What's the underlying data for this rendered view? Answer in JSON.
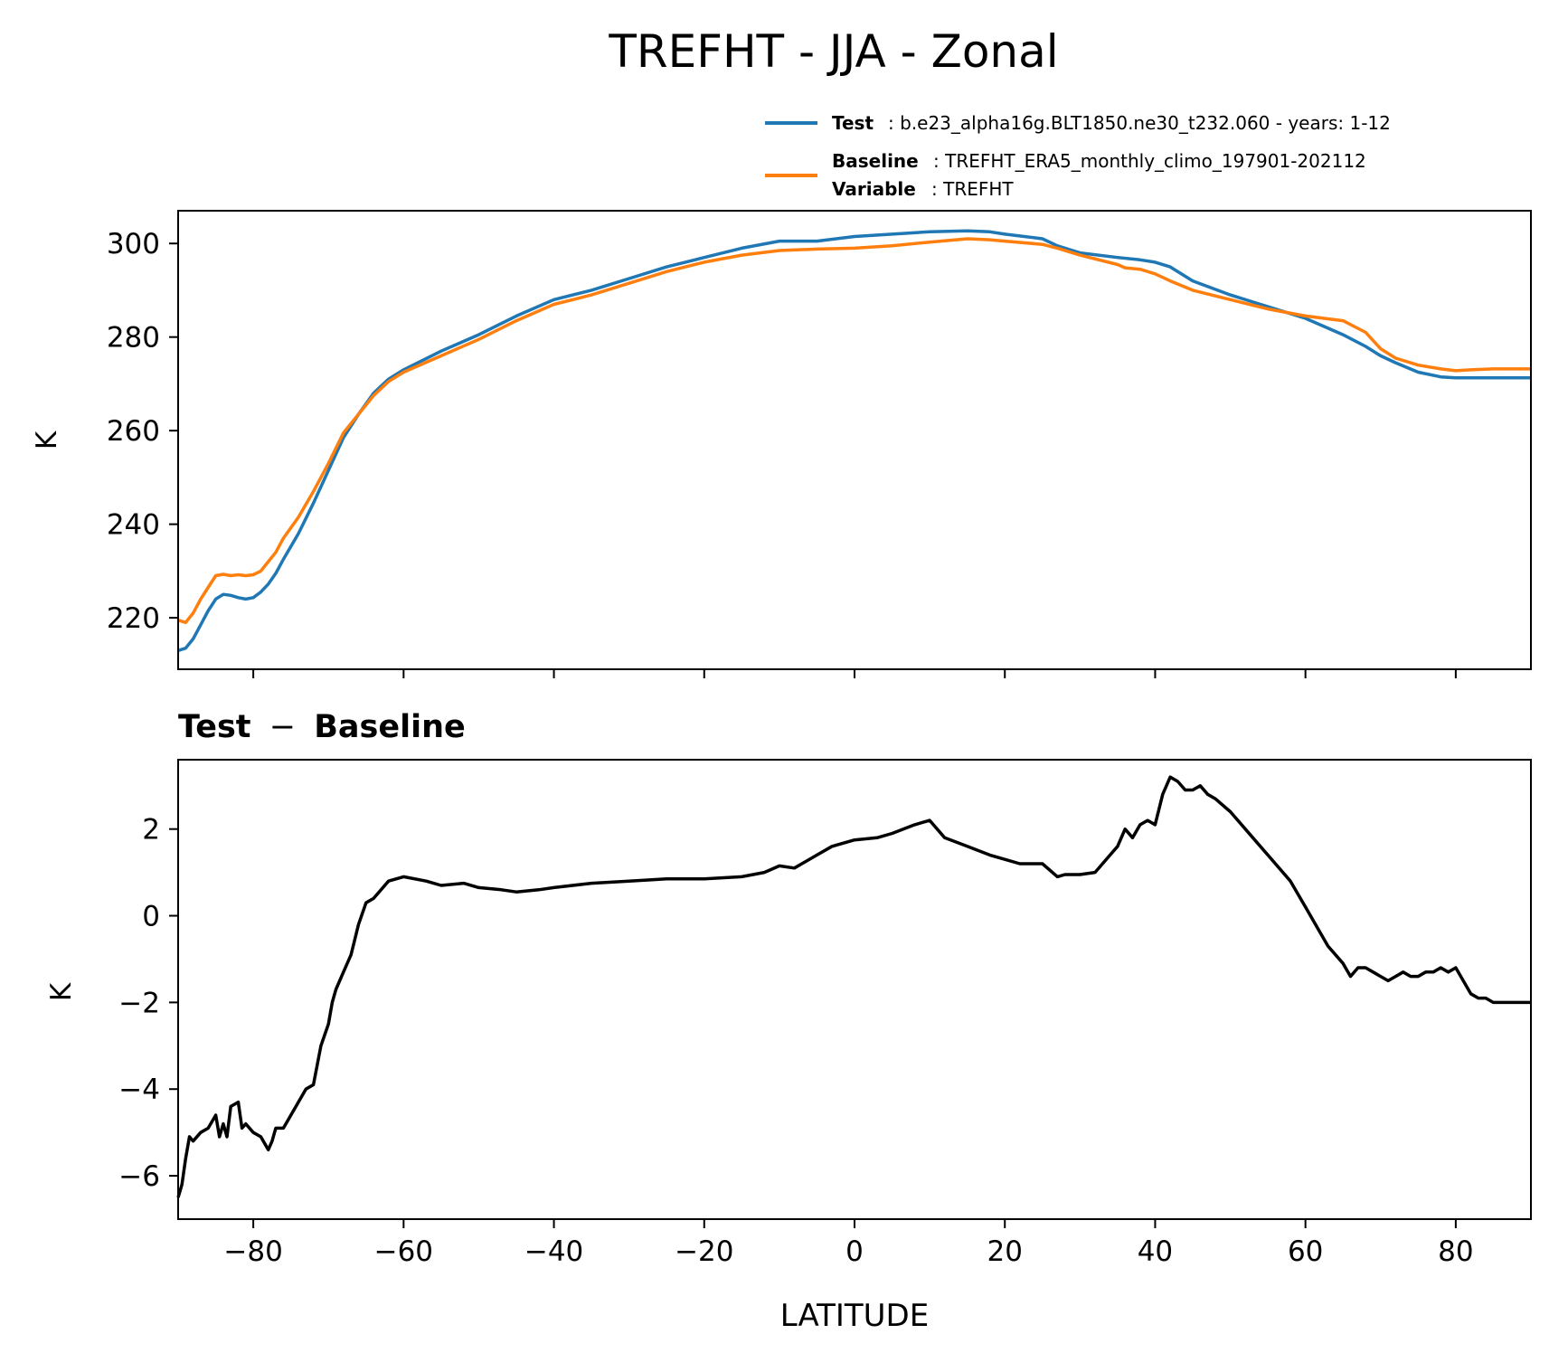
{
  "title": "TREFHT - JJA - Zonal",
  "legend": {
    "test_label": "Test",
    "test_text": ": b.e23_alpha16g.BLT1850.ne30_t232.060 - years: 1-12",
    "baseline_label": "Baseline",
    "baseline_text": ": TREFHT_ERA5_monthly_climo_197901-202112",
    "variable_label": "Variable",
    "variable_text": ": TREFHT"
  },
  "colors": {
    "test": "#1f77b4",
    "baseline": "#ff7f0e",
    "diff": "#000000"
  },
  "chart_data": [
    {
      "type": "line",
      "ylabel": "K",
      "xlim": [
        -90,
        90
      ],
      "ylim": [
        209,
        307
      ],
      "yticks": [
        220,
        240,
        260,
        280,
        300
      ],
      "xticks": [
        -80,
        -60,
        -40,
        -20,
        0,
        20,
        40,
        60,
        80
      ],
      "legend_position": "above-right",
      "series": [
        {
          "name": "Test",
          "x": [
            -90,
            -89,
            -88,
            -87,
            -86,
            -85,
            -84,
            -83,
            -82,
            -81,
            -80,
            -79,
            -78,
            -77,
            -76,
            -74,
            -72,
            -70,
            -68,
            -66,
            -64,
            -62,
            -60,
            -55,
            -50,
            -45,
            -40,
            -35,
            -30,
            -25,
            -20,
            -15,
            -10,
            -5,
            0,
            5,
            10,
            15,
            18,
            20,
            25,
            27,
            30,
            35,
            38,
            40,
            42,
            45,
            50,
            55,
            60,
            65,
            68,
            70,
            72,
            75,
            78,
            80,
            85,
            90
          ],
          "y": [
            213,
            213.5,
            215.5,
            218.5,
            221.5,
            224,
            225,
            224.8,
            224.3,
            224,
            224.3,
            225.5,
            227.2,
            229.5,
            232.5,
            238,
            244.5,
            251.5,
            258.5,
            263.5,
            268,
            271,
            273,
            277,
            280.5,
            284.5,
            288,
            290,
            292.5,
            295,
            297,
            299,
            300.5,
            300.5,
            301.5,
            302,
            302.5,
            302.7,
            302.5,
            302,
            301,
            299.5,
            298,
            297,
            296.5,
            296,
            295,
            292,
            289,
            286.5,
            284,
            280.5,
            278,
            276,
            274.5,
            272.5,
            271.5,
            271.3,
            271.3,
            271.3
          ]
        },
        {
          "name": "Baseline",
          "x": [
            -90,
            -89,
            -88,
            -87,
            -86,
            -85,
            -84,
            -83,
            -82,
            -81,
            -80,
            -79,
            -78,
            -77,
            -76,
            -74,
            -72,
            -70,
            -68,
            -66,
            -64,
            -62,
            -60,
            -55,
            -50,
            -45,
            -40,
            -35,
            -30,
            -25,
            -20,
            -15,
            -10,
            -5,
            0,
            5,
            10,
            15,
            18,
            20,
            25,
            27,
            30,
            35,
            36,
            38,
            40,
            42,
            45,
            50,
            55,
            60,
            65,
            68,
            70,
            72,
            75,
            78,
            80,
            82,
            85,
            90
          ],
          "y": [
            219.5,
            219,
            221,
            224,
            226.5,
            229,
            229.3,
            229,
            229.2,
            229,
            229.2,
            230,
            232,
            234,
            237,
            241.5,
            247,
            253,
            259.5,
            263.5,
            267.5,
            270.5,
            272.5,
            276,
            279.5,
            283.5,
            287,
            289,
            291.5,
            294,
            296,
            297.5,
            298.5,
            298.8,
            299,
            299.5,
            300.3,
            301,
            300.8,
            300.5,
            299.8,
            299,
            297.5,
            295.5,
            294.8,
            294.5,
            293.5,
            292,
            290,
            288,
            286,
            284.5,
            283.5,
            281,
            277.5,
            275.5,
            274,
            273.2,
            272.8,
            273,
            273.2,
            273.2
          ]
        }
      ]
    },
    {
      "type": "line",
      "title": "Test - Baseline",
      "title_left": "Test",
      "title_minus": "−",
      "title_right": "Baseline",
      "ylabel": "K",
      "xlabel": "LATITUDE",
      "xlim": [
        -90,
        90
      ],
      "ylim": [
        -7,
        3.6
      ],
      "yticks": [
        -6,
        -4,
        -2,
        0,
        2
      ],
      "ytick_labels": [
        "−6",
        "−4",
        "−2",
        "0",
        "2"
      ],
      "xticks": [
        -80,
        -60,
        -40,
        -20,
        0,
        20,
        40,
        60,
        80
      ],
      "xtick_labels": [
        "−80",
        "−60",
        "−40",
        "−20",
        "0",
        "20",
        "40",
        "60",
        "80"
      ],
      "series": [
        {
          "x": [
            -90,
            -89.5,
            -89,
            -88.5,
            -88,
            -87,
            -86,
            -85,
            -84.5,
            -84,
            -83.5,
            -83,
            -82,
            -81.5,
            -81,
            -80,
            -79,
            -78,
            -77.5,
            -77,
            -76,
            -75,
            -74,
            -73,
            -72,
            -71,
            -70,
            -69.5,
            -69,
            -68,
            -67,
            -66,
            -65,
            -64,
            -62,
            -60,
            -57,
            -55,
            -52,
            -50,
            -47,
            -45,
            -42,
            -40,
            -35,
            -30,
            -25,
            -20,
            -15,
            -12,
            -10,
            -8,
            -5,
            -3,
            0,
            3,
            5,
            8,
            10,
            12,
            15,
            18,
            20,
            22,
            25,
            27,
            28,
            30,
            32,
            33,
            34,
            35,
            36,
            37,
            38,
            39,
            40,
            41,
            42,
            43,
            44,
            45,
            46,
            47,
            48,
            50,
            52,
            55,
            58,
            60,
            62,
            63,
            64,
            65,
            66,
            67,
            68,
            69,
            70,
            71,
            72,
            73,
            74,
            75,
            76,
            77,
            78,
            79,
            80,
            81,
            82,
            83,
            84,
            85,
            87,
            90
          ],
          "y": [
            -6.5,
            -6.2,
            -5.6,
            -5.1,
            -5.2,
            -5.0,
            -4.9,
            -4.6,
            -5.1,
            -4.8,
            -5.1,
            -4.4,
            -4.3,
            -4.9,
            -4.8,
            -5.0,
            -5.1,
            -5.4,
            -5.2,
            -4.9,
            -4.9,
            -4.6,
            -4.3,
            -4.0,
            -3.9,
            -3.0,
            -2.5,
            -2.0,
            -1.7,
            -1.3,
            -0.9,
            -0.2,
            0.3,
            0.4,
            0.8,
            0.9,
            0.8,
            0.7,
            0.75,
            0.65,
            0.6,
            0.55,
            0.6,
            0.65,
            0.75,
            0.8,
            0.85,
            0.85,
            0.9,
            1.0,
            1.15,
            1.1,
            1.4,
            1.6,
            1.75,
            1.8,
            1.9,
            2.1,
            2.2,
            1.8,
            1.6,
            1.4,
            1.3,
            1.2,
            1.2,
            0.9,
            0.95,
            0.95,
            1.0,
            1.2,
            1.4,
            1.6,
            2.0,
            1.8,
            2.1,
            2.2,
            2.1,
            2.8,
            3.2,
            3.1,
            2.9,
            2.9,
            3.0,
            2.8,
            2.7,
            2.4,
            2.0,
            1.4,
            0.8,
            0.2,
            -0.4,
            -0.7,
            -0.9,
            -1.1,
            -1.4,
            -1.2,
            -1.2,
            -1.3,
            -1.4,
            -1.5,
            -1.4,
            -1.3,
            -1.4,
            -1.4,
            -1.3,
            -1.3,
            -1.2,
            -1.3,
            -1.2,
            -1.5,
            -1.8,
            -1.9,
            -1.9,
            -2.0,
            -2.0,
            -2.0
          ]
        }
      ]
    }
  ]
}
